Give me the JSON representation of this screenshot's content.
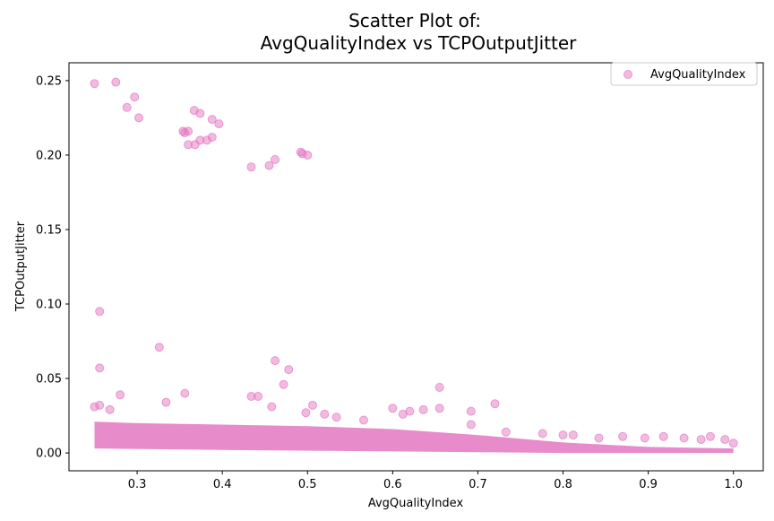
{
  "chart_data": {
    "type": "scatter",
    "title_line1": "Scatter Plot of:",
    "title_line2": "AvgQualityIndex vs TCPOutputJitter",
    "xlabel": "AvgQualityIndex",
    "ylabel": "TCPOutputJitter",
    "xlim": [
      0.22,
      1.035
    ],
    "ylim": [
      -0.012,
      0.262
    ],
    "x_ticks": [
      0.3,
      0.4,
      0.5,
      0.6,
      0.7,
      0.8,
      0.9,
      1.0
    ],
    "x_tick_labels": [
      "0.3",
      "0.4",
      "0.5",
      "0.6",
      "0.7",
      "0.8",
      "0.9",
      "1.0"
    ],
    "y_ticks": [
      0.0,
      0.05,
      0.1,
      0.15,
      0.2,
      0.25
    ],
    "y_tick_labels": [
      "0.00",
      "0.05",
      "0.10",
      "0.15",
      "0.20",
      "0.25"
    ],
    "grid": false,
    "legend_position": "top-right",
    "color": "#e377c2",
    "series": [
      {
        "name": "AvgQualityIndex",
        "points": [
          [
            0.25,
            0.248
          ],
          [
            0.275,
            0.249
          ],
          [
            0.297,
            0.239
          ],
          [
            0.288,
            0.232
          ],
          [
            0.302,
            0.225
          ],
          [
            0.367,
            0.23
          ],
          [
            0.374,
            0.228
          ],
          [
            0.388,
            0.224
          ],
          [
            0.396,
            0.221
          ],
          [
            0.354,
            0.216
          ],
          [
            0.36,
            0.216
          ],
          [
            0.356,
            0.215
          ],
          [
            0.388,
            0.212
          ],
          [
            0.374,
            0.21
          ],
          [
            0.382,
            0.21
          ],
          [
            0.368,
            0.207
          ],
          [
            0.36,
            0.207
          ],
          [
            0.492,
            0.202
          ],
          [
            0.494,
            0.201
          ],
          [
            0.5,
            0.2
          ],
          [
            0.462,
            0.197
          ],
          [
            0.434,
            0.192
          ],
          [
            0.455,
            0.193
          ],
          [
            0.256,
            0.095
          ],
          [
            0.326,
            0.071
          ],
          [
            0.462,
            0.062
          ],
          [
            0.256,
            0.057
          ],
          [
            0.478,
            0.056
          ],
          [
            0.472,
            0.046
          ],
          [
            0.655,
            0.044
          ],
          [
            0.28,
            0.039
          ],
          [
            0.356,
            0.04
          ],
          [
            0.434,
            0.038
          ],
          [
            0.442,
            0.038
          ],
          [
            0.334,
            0.034
          ],
          [
            0.506,
            0.032
          ],
          [
            0.72,
            0.033
          ],
          [
            0.256,
            0.032
          ],
          [
            0.25,
            0.031
          ],
          [
            0.458,
            0.031
          ],
          [
            0.6,
            0.03
          ],
          [
            0.655,
            0.03
          ],
          [
            0.268,
            0.029
          ],
          [
            0.62,
            0.028
          ],
          [
            0.692,
            0.028
          ],
          [
            0.636,
            0.029
          ],
          [
            0.498,
            0.027
          ],
          [
            0.52,
            0.026
          ],
          [
            0.612,
            0.026
          ],
          [
            0.534,
            0.024
          ],
          [
            0.566,
            0.022
          ],
          [
            0.692,
            0.019
          ],
          [
            0.733,
            0.014
          ],
          [
            0.776,
            0.013
          ],
          [
            0.8,
            0.012
          ],
          [
            0.812,
            0.012
          ],
          [
            0.842,
            0.01
          ],
          [
            0.87,
            0.011
          ],
          [
            0.896,
            0.01
          ],
          [
            0.918,
            0.011
          ],
          [
            0.942,
            0.01
          ],
          [
            0.962,
            0.009
          ],
          [
            0.973,
            0.011
          ],
          [
            0.99,
            0.009
          ],
          [
            1.0,
            0.0065
          ]
        ]
      }
    ]
  }
}
